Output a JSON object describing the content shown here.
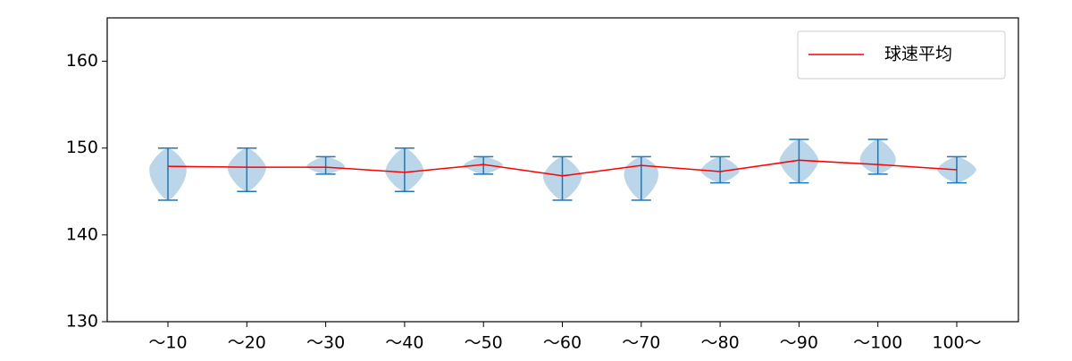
{
  "chart_data": {
    "type": "violin",
    "categories": [
      "～10",
      "～20",
      "～30",
      "～40",
      "～50",
      "～60",
      "～70",
      "～80",
      "～90",
      "～100",
      "100～"
    ],
    "max": [
      150,
      150,
      149,
      150,
      149,
      149,
      149,
      149,
      151,
      151,
      149
    ],
    "min": [
      144,
      145,
      147,
      145,
      147,
      144,
      144,
      146,
      146,
      147,
      146
    ],
    "violin_color": "#1f77b4",
    "series": [
      {
        "name": "球速平均",
        "color": "#ff0000",
        "values": [
          147.9,
          147.8,
          147.8,
          147.2,
          148.1,
          146.8,
          148.0,
          147.3,
          148.6,
          148.1,
          147.5
        ]
      }
    ],
    "ylim": [
      130,
      165
    ],
    "yticks": [
      130,
      140,
      150,
      160
    ],
    "legend": "upper right"
  }
}
